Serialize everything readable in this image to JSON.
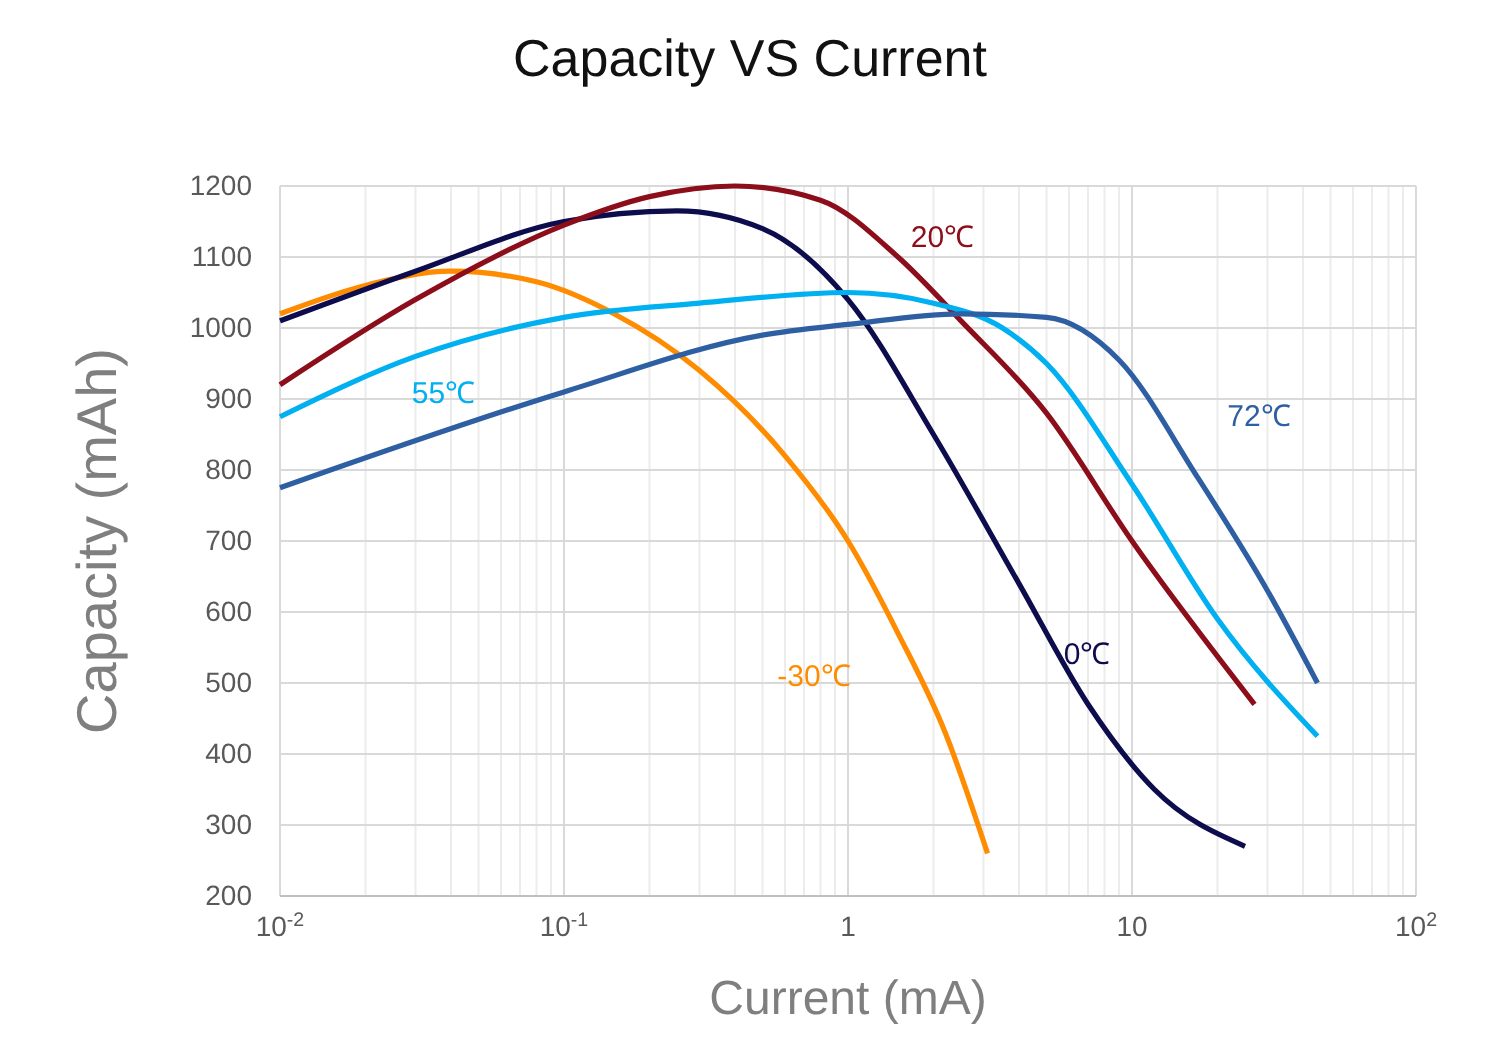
{
  "chart_data": {
    "type": "line",
    "title": "Capacity VS Current",
    "xlabel": "Current (mA)",
    "ylabel": "Capacity (mAh)",
    "log": "x",
    "grid": true,
    "marker": "none",
    "line_style": "solid",
    "xlim": [
      0.01,
      100
    ],
    "xticks": [
      {
        "value": 0.01,
        "label": "10$^{-2}$"
      },
      {
        "value": 0.1,
        "label": "10$^{-1}$"
      },
      1,
      10,
      {
        "value": 100,
        "label": "10$^{2}$"
      }
    ],
    "ylim": [
      200,
      1200
    ],
    "yticks": [
      200,
      300,
      400,
      500,
      600,
      700,
      800,
      900,
      1000,
      1100,
      1200
    ],
    "series": [
      {
        "name": "-30℃",
        "color": "#ff8c00",
        "x": [
          0.01,
          0.02,
          0.04,
          0.08,
          0.15,
          0.3,
          0.6,
          1,
          1.5,
          2.2,
          3.1
        ],
        "values": [
          1020,
          1060,
          1080,
          1065,
          1020,
          940,
          820,
          700,
          570,
          430,
          260
        ]
      },
      {
        "name": "0℃",
        "color": "#0d0d4d",
        "x": [
          0.01,
          0.03,
          0.1,
          0.25,
          0.5,
          1,
          2,
          4,
          7,
          12,
          25
        ],
        "values": [
          1010,
          1080,
          1150,
          1165,
          1140,
          1040,
          850,
          640,
          470,
          350,
          270
        ]
      },
      {
        "name": "20℃",
        "color": "#8b0e1a",
        "x": [
          0.01,
          0.03,
          0.1,
          0.2,
          0.4,
          0.8,
          1.5,
          2.5,
          5,
          10,
          27
        ],
        "values": [
          920,
          1040,
          1145,
          1185,
          1200,
          1180,
          1100,
          1010,
          880,
          700,
          470
        ]
      },
      {
        "name": "55℃",
        "color": "#00b0f0",
        "x": [
          0.01,
          0.03,
          0.1,
          0.3,
          1,
          2,
          3.5,
          5,
          10,
          20,
          45
        ],
        "values": [
          875,
          960,
          1015,
          1035,
          1050,
          1035,
          1000,
          950,
          780,
          590,
          425
        ]
      },
      {
        "name": "72℃",
        "color": "#2e5fa3",
        "x": [
          0.01,
          0.1,
          0.5,
          1,
          2.5,
          5,
          9,
          17,
          30,
          45
        ],
        "values": [
          775,
          910,
          990,
          1005,
          1020,
          1015,
          955,
          790,
          630,
          500
        ]
      }
    ]
  }
}
